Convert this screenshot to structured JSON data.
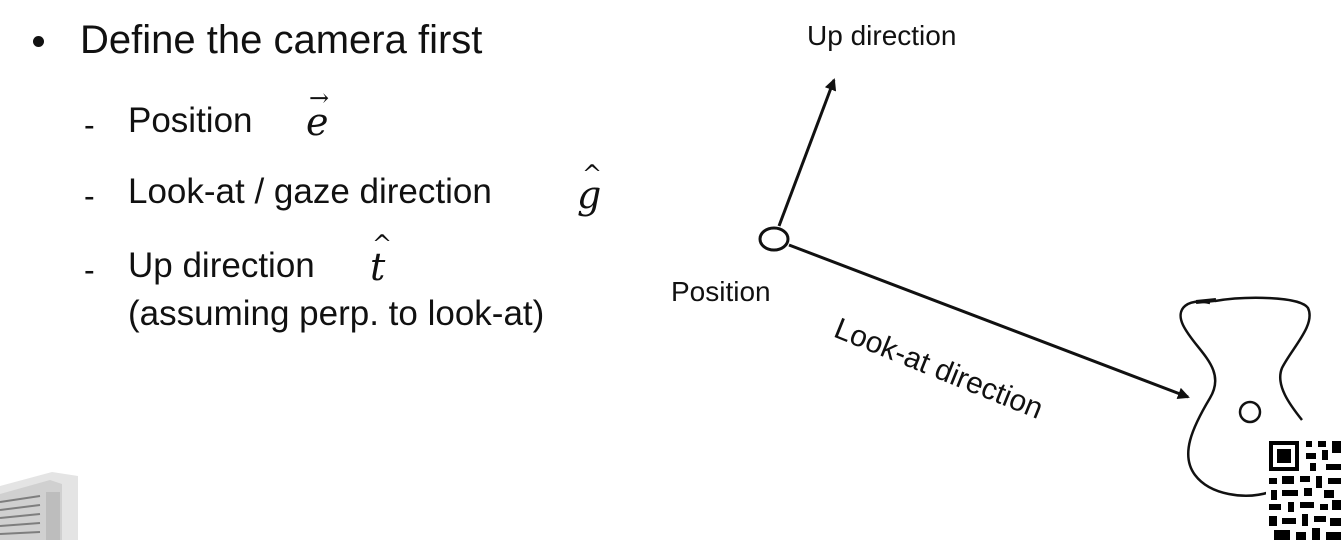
{
  "slide": {
    "bullet_title": "Define the camera first",
    "items": [
      {
        "label": "Position",
        "symbol": "e",
        "symbol_mark": "→"
      },
      {
        "label": "Look-at / gaze direction",
        "symbol": "g",
        "symbol_mark": "^"
      },
      {
        "label": "Up direction",
        "symbol": "t",
        "symbol_mark": "^"
      }
    ],
    "note": "(assuming perp. to look-at)"
  },
  "diagram": {
    "up_label": "Up direction",
    "position_label": "Position",
    "lookat_label": "Look-at direction"
  },
  "colors": {
    "text": "#111111",
    "background": "#ffffff"
  },
  "icons": {
    "thumbnail": "camera-thumbnail-icon",
    "qr": "qr-code-icon"
  }
}
